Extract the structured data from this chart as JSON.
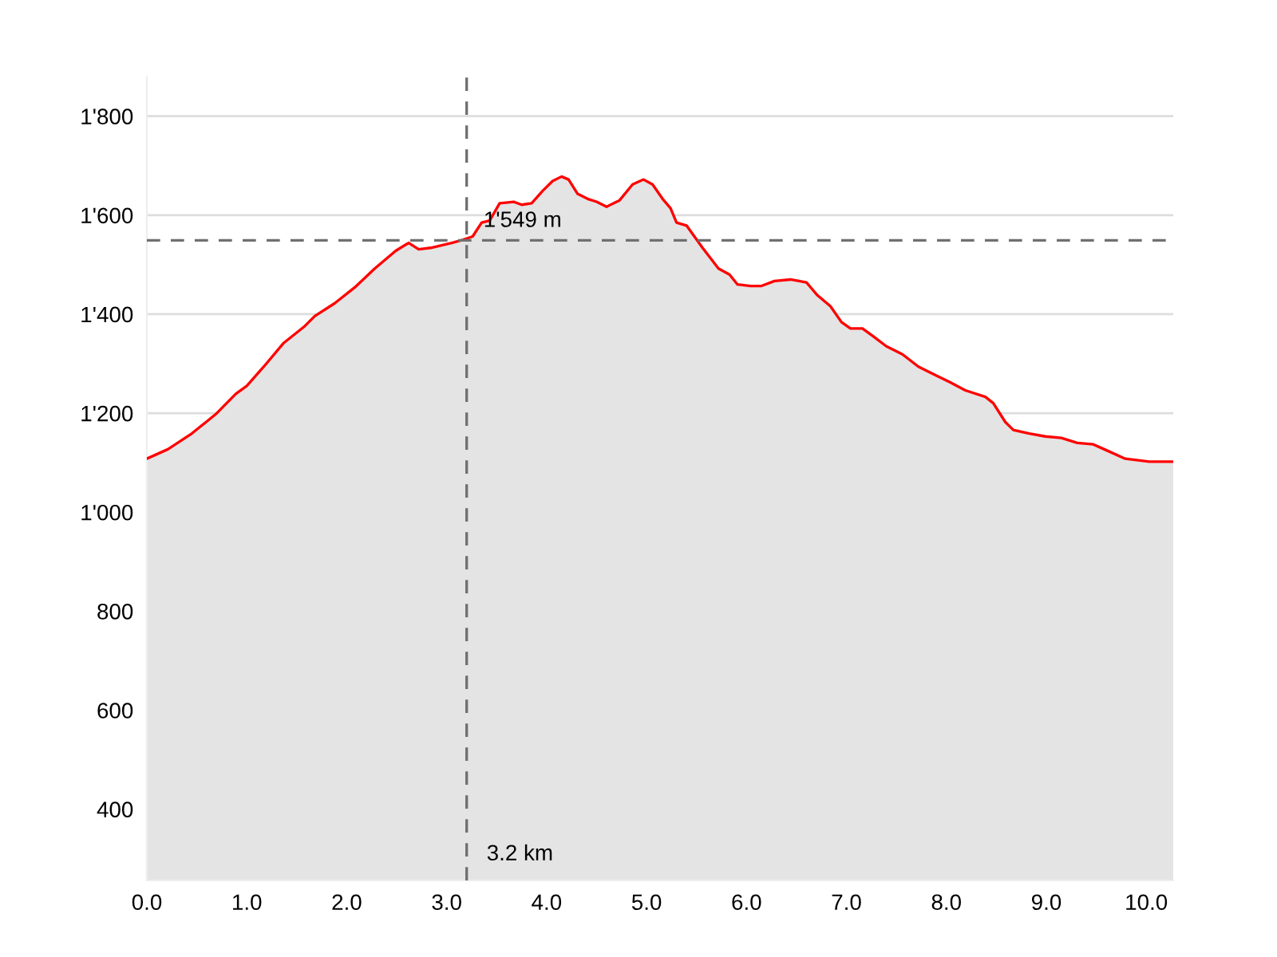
{
  "chart_data": {
    "type": "area",
    "x": [
      0,
      0.21,
      0.45,
      0.69,
      0.89,
      1.0,
      1.17,
      1.37,
      1.57,
      1.68,
      1.88,
      2.08,
      2.28,
      2.49,
      2.62,
      2.72,
      2.84,
      3.05,
      3.16,
      3.26,
      3.35,
      3.43,
      3.53,
      3.67,
      3.75,
      3.85,
      3.96,
      4.06,
      4.15,
      4.22,
      4.31,
      4.41,
      4.5,
      4.6,
      4.73,
      4.86,
      4.97,
      5.06,
      5.16,
      5.24,
      5.3,
      5.4,
      5.56,
      5.72,
      5.83,
      5.91,
      6.04,
      6.15,
      6.28,
      6.44,
      6.6,
      6.71,
      6.84,
      6.95,
      7.04,
      7.16,
      7.27,
      7.4,
      7.56,
      7.72,
      7.88,
      8.04,
      8.19,
      8.39,
      8.47,
      8.59,
      8.67,
      8.83,
      8.99,
      9.15,
      9.31,
      9.47,
      9.58,
      9.79,
      10.03,
      10.27
    ],
    "series": [
      {
        "color": "#ff0000",
        "values": [
          1108,
          1127,
          1159,
          1198,
          1239,
          1255,
          1294,
          1342,
          1374,
          1396,
          1422,
          1454,
          1492,
          1528,
          1544,
          1531,
          1534,
          1544,
          1550,
          1557,
          1585,
          1589,
          1624,
          1627,
          1621,
          1624,
          1649,
          1669,
          1678,
          1672,
          1643,
          1633,
          1627,
          1617,
          1630,
          1662,
          1672,
          1662,
          1633,
          1614,
          1585,
          1579,
          1534,
          1492,
          1480,
          1460,
          1457,
          1457,
          1467,
          1470,
          1464,
          1438,
          1416,
          1384,
          1371,
          1371,
          1355,
          1335,
          1319,
          1294,
          1278,
          1262,
          1246,
          1233,
          1220,
          1182,
          1166,
          1159,
          1153,
          1150,
          1140,
          1137,
          1127,
          1108,
          1102,
          1102
        ]
      }
    ],
    "xlim": [
      0,
      10.27
    ],
    "ylim": [
      256,
      1880
    ],
    "xticks": [
      {
        "value": 0,
        "label": "0.0"
      },
      {
        "value": 1,
        "label": "1.0"
      },
      {
        "value": 2,
        "label": "2.0"
      },
      {
        "value": 3,
        "label": "3.0"
      },
      {
        "value": 4,
        "label": "4.0"
      },
      {
        "value": 5,
        "label": "5.0"
      },
      {
        "value": 6,
        "label": "6.0"
      },
      {
        "value": 7,
        "label": "7.0"
      },
      {
        "value": 8,
        "label": "8.0"
      },
      {
        "value": 9,
        "label": "9.0"
      },
      {
        "value": 10,
        "label": "10.0"
      }
    ],
    "yticks": [
      {
        "value": 400,
        "label": "400"
      },
      {
        "value": 600,
        "label": "600"
      },
      {
        "value": 800,
        "label": "800"
      },
      {
        "value": 1000,
        "label": "1'000"
      },
      {
        "value": 1200,
        "label": "1'200"
      },
      {
        "value": 1400,
        "label": "1'400"
      },
      {
        "value": 1600,
        "label": "1'600"
      },
      {
        "value": 1800,
        "label": "1'800"
      }
    ],
    "grid": "y",
    "ref_lines": [
      {
        "axis": "y",
        "value": 1549,
        "label": "1'549 m",
        "color": "#707070",
        "line_style": "dashed"
      },
      {
        "axis": "x",
        "value": 3.2,
        "label": "3.2 km",
        "color": "#707070",
        "line_style": "dashed"
      }
    ]
  }
}
